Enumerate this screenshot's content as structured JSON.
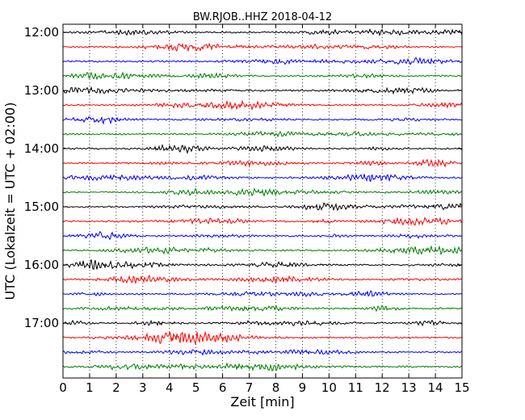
{
  "chart_data": {
    "type": "line",
    "title": "BW.RJOB..HHZ 2018-04-12",
    "xlabel": "Zeit  [min]",
    "ylabel": "UTC (Lokalzeit = UTC + 02:00)",
    "xlim": [
      0,
      15
    ],
    "x_ticks": [
      "0",
      "1",
      "2",
      "3",
      "4",
      "5",
      "6",
      "7",
      "8",
      "9",
      "10",
      "11",
      "12",
      "13",
      "14",
      "15"
    ],
    "y_ticks": [
      "12:00",
      "13:00",
      "14:00",
      "15:00",
      "16:00",
      "17:00"
    ],
    "trace_start_times": [
      "12:00",
      "12:15",
      "12:30",
      "12:45",
      "13:00",
      "13:15",
      "13:30",
      "13:45",
      "14:00",
      "14:15",
      "14:30",
      "14:45",
      "15:00",
      "15:15",
      "15:30",
      "15:45",
      "16:00",
      "16:15",
      "16:30",
      "16:45",
      "17:00",
      "17:15",
      "17:30",
      "17:45"
    ],
    "trace_colors": [
      "#000000",
      "#ff0000",
      "#0000ff",
      "#008000"
    ],
    "trace_duration_min": 15,
    "vertical_grid": "dotted"
  }
}
